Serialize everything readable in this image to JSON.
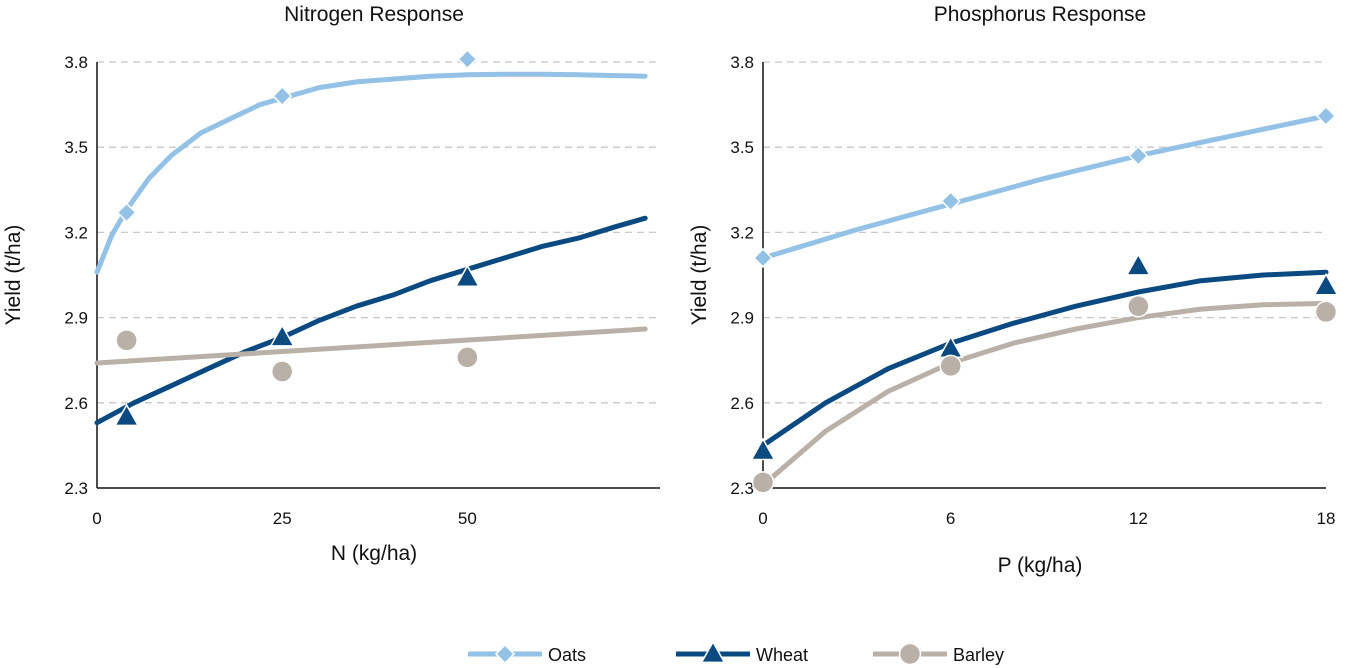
{
  "colors": {
    "oats": "#93c2e6",
    "wheat": "#0b4a80",
    "barley": "#b9b0a8"
  },
  "legend": [
    {
      "key": "oats",
      "label": "Oats",
      "marker": "diamond"
    },
    {
      "key": "wheat",
      "label": "Wheat",
      "marker": "triangle"
    },
    {
      "key": "barley",
      "label": "Barley",
      "marker": "circle"
    }
  ],
  "chart_data": [
    {
      "type": "scatter",
      "title": "Nitrogen Response",
      "xlabel": "N (kg/ha)",
      "ylabel": "Yield (t/ha)",
      "xlim": [
        0,
        76
      ],
      "ylim": [
        2.3,
        3.8
      ],
      "xticks": [
        "0",
        "25",
        "50"
      ],
      "yticks": [
        "2.3",
        "2.6",
        "2.9",
        "3.2",
        "3.5",
        "3.8"
      ],
      "grid": true,
      "series": [
        {
          "key": "oats",
          "name": "Oats",
          "marker": "diamond",
          "points": [
            [
              4,
              3.27
            ],
            [
              25,
              3.68
            ],
            [
              50,
              3.81
            ]
          ],
          "trend": [
            [
              0,
              3.06
            ],
            [
              2,
              3.19
            ],
            [
              4,
              3.28
            ],
            [
              7,
              3.39
            ],
            [
              10,
              3.47
            ],
            [
              14,
              3.55
            ],
            [
              18,
              3.6
            ],
            [
              22,
              3.65
            ],
            [
              26,
              3.68
            ],
            [
              30,
              3.71
            ],
            [
              35,
              3.73
            ],
            [
              40,
              3.74
            ],
            [
              45,
              3.75
            ],
            [
              50,
              3.755
            ],
            [
              55,
              3.757
            ],
            [
              60,
              3.757
            ],
            [
              65,
              3.755
            ],
            [
              70,
              3.752
            ],
            [
              74,
              3.75
            ]
          ]
        },
        {
          "key": "wheat",
          "name": "Wheat",
          "marker": "triangle",
          "points": [
            [
              4,
              2.55
            ],
            [
              25,
              2.83
            ],
            [
              50,
              3.04
            ]
          ],
          "trend": [
            [
              0,
              2.53
            ],
            [
              5,
              2.6
            ],
            [
              10,
              2.66
            ],
            [
              15,
              2.72
            ],
            [
              20,
              2.78
            ],
            [
              25,
              2.83
            ],
            [
              30,
              2.89
            ],
            [
              35,
              2.94
            ],
            [
              40,
              2.98
            ],
            [
              45,
              3.03
            ],
            [
              50,
              3.07
            ],
            [
              55,
              3.11
            ],
            [
              60,
              3.15
            ],
            [
              65,
              3.18
            ],
            [
              70,
              3.22
            ],
            [
              74,
              3.25
            ]
          ]
        },
        {
          "key": "barley",
          "name": "Barley",
          "marker": "circle",
          "points": [
            [
              4,
              2.82
            ],
            [
              25,
              2.71
            ],
            [
              50,
              2.76
            ]
          ],
          "trend": [
            [
              0,
              2.74
            ],
            [
              74,
              2.86
            ]
          ]
        }
      ]
    },
    {
      "type": "scatter",
      "title": "Phosphorus Response",
      "xlabel": "P (kg/ha)",
      "ylabel": "Yield (t/ha)",
      "xlim": [
        0,
        18
      ],
      "ylim": [
        2.3,
        3.8
      ],
      "xticks": [
        "0",
        "6",
        "12",
        "18"
      ],
      "yticks": [
        "2.3",
        "2.6",
        "2.9",
        "3.2",
        "3.5",
        "3.8"
      ],
      "grid": true,
      "series": [
        {
          "key": "oats",
          "name": "Oats",
          "marker": "diamond",
          "points": [
            [
              0,
              3.11
            ],
            [
              6,
              3.31
            ],
            [
              12,
              3.47
            ],
            [
              18,
              3.61
            ]
          ],
          "trend": [
            [
              0,
              3.11
            ],
            [
              3,
              3.21
            ],
            [
              6,
              3.3
            ],
            [
              9,
              3.39
            ],
            [
              12,
              3.47
            ],
            [
              15,
              3.54
            ],
            [
              18,
              3.61
            ]
          ]
        },
        {
          "key": "wheat",
          "name": "Wheat",
          "marker": "triangle",
          "points": [
            [
              0,
              2.43
            ],
            [
              6,
              2.79
            ],
            [
              12,
              3.08
            ],
            [
              18,
              3.01
            ]
          ],
          "trend": [
            [
              0,
              2.45
            ],
            [
              2,
              2.6
            ],
            [
              4,
              2.72
            ],
            [
              6,
              2.81
            ],
            [
              8,
              2.88
            ],
            [
              10,
              2.94
            ],
            [
              12,
              2.99
            ],
            [
              14,
              3.03
            ],
            [
              16,
              3.05
            ],
            [
              18,
              3.06
            ]
          ]
        },
        {
          "key": "barley",
          "name": "Barley",
          "marker": "circle",
          "points": [
            [
              0,
              2.32
            ],
            [
              6,
              2.73
            ],
            [
              12,
              2.94
            ],
            [
              18,
              2.92
            ]
          ],
          "trend": [
            [
              0,
              2.31
            ],
            [
              2,
              2.5
            ],
            [
              4,
              2.64
            ],
            [
              6,
              2.74
            ],
            [
              8,
              2.81
            ],
            [
              10,
              2.86
            ],
            [
              12,
              2.9
            ],
            [
              14,
              2.93
            ],
            [
              16,
              2.945
            ],
            [
              18,
              2.95
            ]
          ]
        }
      ]
    }
  ]
}
